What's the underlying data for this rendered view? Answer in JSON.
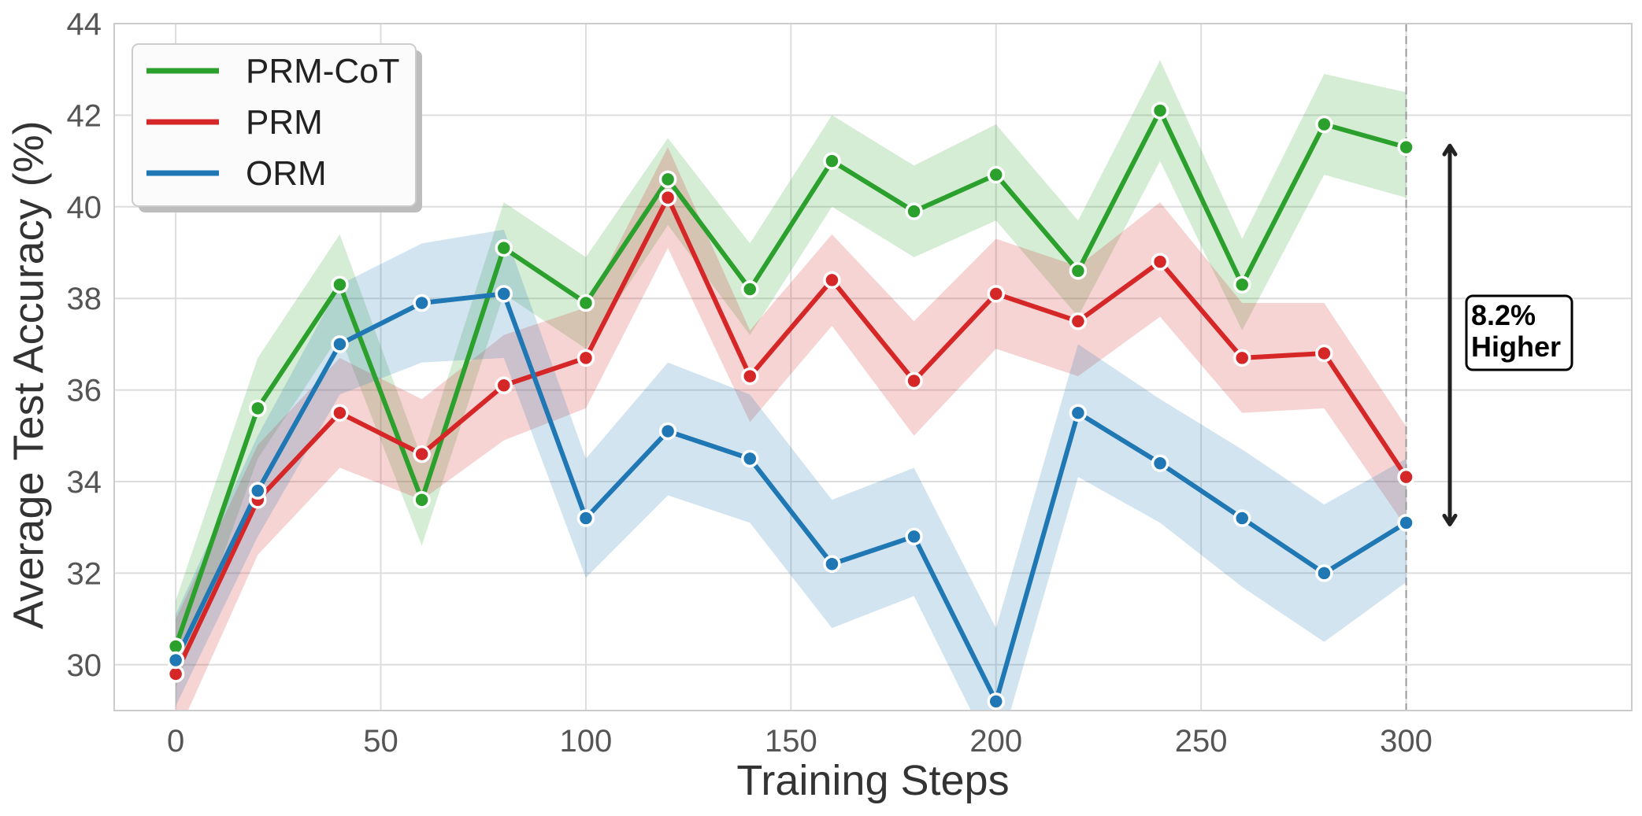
{
  "chart_data": {
    "type": "line",
    "xlabel": "Training Steps",
    "ylabel": "Average Test Accuracy (%)",
    "xlim": [
      -15,
      355
    ],
    "ylim": [
      29,
      44
    ],
    "xticks": [
      0,
      50,
      100,
      150,
      200,
      250,
      300
    ],
    "yticks": [
      30,
      32,
      34,
      36,
      38,
      40,
      42,
      44
    ],
    "grid": true,
    "legend": "top-left",
    "x": [
      0,
      20,
      40,
      60,
      80,
      100,
      120,
      140,
      160,
      180,
      200,
      220,
      240,
      260,
      280,
      300
    ],
    "series": [
      {
        "name": "PRM-CoT",
        "color": "#2ca02c",
        "values": [
          30.4,
          35.6,
          38.3,
          33.6,
          39.1,
          37.9,
          40.6,
          38.2,
          41.0,
          39.9,
          40.7,
          38.6,
          42.1,
          38.3,
          41.8,
          41.3
        ],
        "band_lower": [
          29.5,
          34.5,
          37.2,
          32.6,
          38.1,
          36.9,
          39.6,
          37.2,
          40.0,
          38.9,
          39.7,
          37.6,
          41.0,
          37.3,
          40.7,
          40.2
        ],
        "band_upper": [
          31.4,
          36.7,
          39.4,
          34.5,
          40.1,
          38.9,
          41.5,
          39.2,
          42.0,
          40.9,
          41.8,
          39.7,
          43.2,
          39.3,
          42.9,
          42.5
        ]
      },
      {
        "name": "PRM",
        "color": "#d62728",
        "values": [
          29.8,
          33.6,
          35.5,
          34.6,
          36.1,
          36.7,
          40.2,
          36.3,
          38.4,
          36.2,
          38.1,
          37.5,
          38.8,
          36.7,
          36.8,
          34.1
        ],
        "band_lower": [
          28.4,
          32.4,
          34.3,
          33.6,
          34.9,
          35.6,
          39.1,
          35.3,
          37.4,
          35.0,
          36.9,
          36.3,
          37.6,
          35.5,
          35.6,
          33.0
        ],
        "band_upper": [
          31.0,
          34.8,
          36.7,
          35.8,
          37.2,
          37.8,
          41.3,
          37.3,
          39.4,
          37.5,
          39.3,
          38.7,
          40.1,
          37.9,
          37.9,
          35.2
        ]
      },
      {
        "name": "ORM",
        "color": "#1f77b4",
        "values": [
          30.1,
          33.8,
          37.0,
          37.9,
          38.1,
          33.2,
          35.1,
          34.5,
          32.2,
          32.8,
          29.2,
          35.5,
          34.4,
          33.2,
          32.0,
          33.1
        ],
        "band_lower": [
          29.1,
          32.8,
          35.9,
          36.6,
          36.7,
          31.9,
          33.7,
          33.1,
          30.8,
          31.5,
          27.9,
          34.1,
          33.1,
          31.7,
          30.5,
          31.8
        ],
        "band_upper": [
          31.1,
          35.0,
          38.3,
          39.2,
          39.5,
          34.5,
          36.6,
          35.9,
          33.6,
          34.3,
          30.8,
          37.0,
          35.8,
          34.7,
          33.5,
          34.5
        ]
      }
    ],
    "reference_line_x": 300,
    "annotation": {
      "text_line1": "8.2%",
      "text_line2": "Higher",
      "arrow_from_y": 33.1,
      "arrow_to_y": 41.3
    }
  }
}
